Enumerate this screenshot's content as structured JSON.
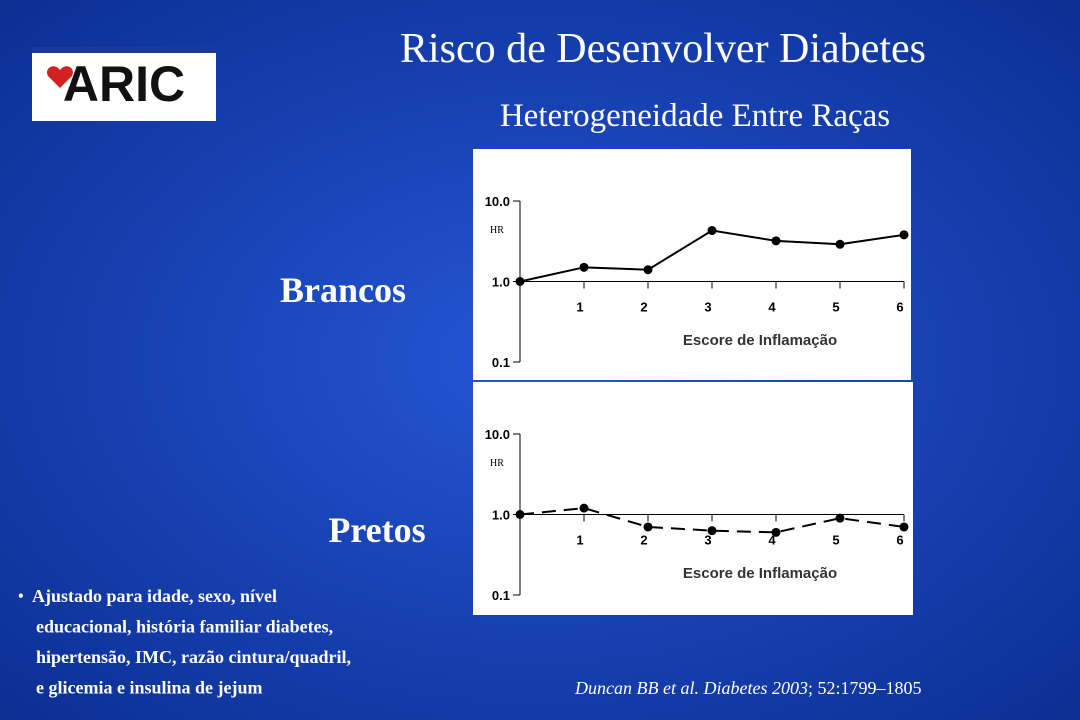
{
  "logo": "ARIC",
  "title": "Risco de Desenvolver Diabetes",
  "subtitle": "Heterogeneidade Entre Raças",
  "footnote": [
    "Ajustado para idade, sexo, nível",
    "educacional, história familiar diabetes,",
    "hipertensão, IMC, razão cintura/quadril,",
    "e glicemia e insulina de jejum"
  ],
  "citation": {
    "italic": "Duncan BB et al. Diabetes 2003",
    "rest": "; 52:1799–1805"
  },
  "chart_data": [
    {
      "type": "line",
      "title": "Brancos",
      "ylabel": "HR",
      "xlabel": "Escore de Inflamação",
      "log_y": true,
      "ylim": [
        0.1,
        10
      ],
      "yticks": [
        {
          "value": 10,
          "label": "10.0"
        },
        {
          "value": 1,
          "label": "1.0"
        },
        {
          "value": 0.1,
          "label": "0.1"
        }
      ],
      "xlim": [
        0,
        6
      ],
      "xticks": [
        1,
        2,
        3,
        4,
        5,
        6
      ],
      "x": [
        0,
        1,
        2,
        3,
        4,
        5,
        6
      ],
      "series": [
        {
          "color": "#000000",
          "dashed": false,
          "values": [
            1.0,
            1.5,
            1.4,
            4.3,
            3.2,
            2.9,
            3.8
          ]
        }
      ]
    },
    {
      "type": "line",
      "title": "Pretos",
      "ylabel": "HR",
      "xlabel": "Escore de Inflamação",
      "log_y": true,
      "ylim": [
        0.1,
        10
      ],
      "yticks": [
        {
          "value": 10,
          "label": "10.0"
        },
        {
          "value": 1,
          "label": "1.0"
        },
        {
          "value": 0.1,
          "label": "0.1"
        }
      ],
      "xlim": [
        0,
        6
      ],
      "xticks": [
        1,
        2,
        3,
        4,
        5,
        6
      ],
      "x": [
        0,
        1,
        2,
        3,
        4,
        5,
        6
      ],
      "series": [
        {
          "color": "#000000",
          "dashed": true,
          "values": [
            1.0,
            1.2,
            0.7,
            0.63,
            0.6,
            0.9,
            0.7
          ]
        }
      ]
    }
  ]
}
